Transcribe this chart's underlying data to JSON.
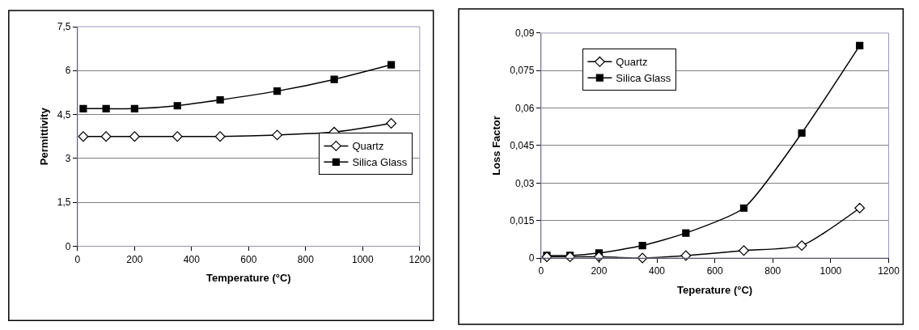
{
  "chart_data": [
    {
      "type": "line",
      "xlabel": "Temperature (°C)",
      "ylabel": "Permittivity",
      "x": [
        20,
        100,
        200,
        350,
        500,
        700,
        900,
        1100
      ],
      "series": [
        {
          "name": "Quartz",
          "color": "#000000",
          "marker": "diamond",
          "values": [
            3.75,
            3.75,
            3.75,
            3.75,
            3.75,
            3.8,
            3.9,
            4.2
          ]
        },
        {
          "name": "Silica Glass",
          "color": "#000000",
          "marker": "square",
          "values": [
            4.7,
            4.7,
            4.7,
            4.8,
            5.0,
            5.3,
            5.7,
            6.2
          ]
        }
      ],
      "xlim": [
        0,
        1200
      ],
      "xticks": [
        0,
        200,
        400,
        600,
        800,
        1000,
        1200
      ],
      "ylim": [
        0,
        7.5
      ],
      "yticks": [
        0,
        {
          "value": 1.5,
          "label": "1,5"
        },
        3,
        {
          "value": 4.5,
          "label": "4,5"
        },
        6,
        {
          "value": 7.5,
          "label": "7,5"
        }
      ],
      "grid": "y",
      "legend": "right",
      "line_style": "solid"
    },
    {
      "type": "line",
      "xlabel": "Teperature (°C)",
      "ylabel": "Loss Factor",
      "x": [
        20,
        100,
        200,
        350,
        500,
        700,
        900,
        1100
      ],
      "series": [
        {
          "name": "Quartz",
          "color": "#000000",
          "marker": "diamond",
          "values": [
            0.0005,
            0.0005,
            0.0005,
            0,
            0.001,
            0.003,
            0.005,
            0.02
          ]
        },
        {
          "name": "Silica Glass",
          "color": "#000000",
          "marker": "square",
          "values": [
            0.001,
            0.001,
            0.002,
            0.005,
            0.01,
            0.02,
            0.05,
            0.085
          ]
        }
      ],
      "xlim": [
        0,
        1200
      ],
      "xticks": [
        0,
        200,
        400,
        600,
        800,
        1000,
        1200
      ],
      "ylim": [
        0,
        0.09
      ],
      "yticks": [
        0,
        {
          "value": 0.015,
          "label": "0,015"
        },
        {
          "value": 0.03,
          "label": "0,03"
        },
        {
          "value": 0.045,
          "label": "0,045"
        },
        {
          "value": 0.06,
          "label": "0,06"
        },
        {
          "value": 0.075,
          "label": "0,075"
        },
        {
          "value": 0.09,
          "label": "0,09"
        }
      ],
      "grid": "y",
      "legend": "top left",
      "line_style": "solid"
    }
  ]
}
